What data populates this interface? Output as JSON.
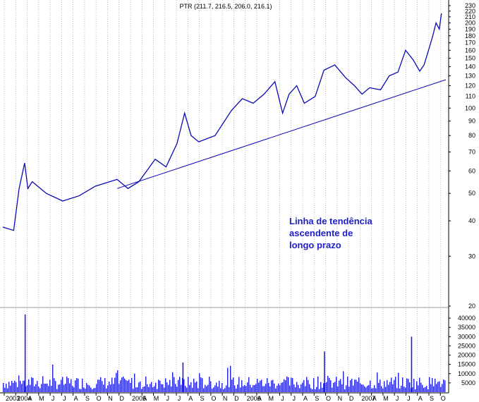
{
  "chart_data": {
    "type": "line",
    "title": "PTR (211.7, 216.5, 206.0, 216.1)",
    "colors": {
      "price": "#0a0ab4",
      "trendline": "#0a0ab4",
      "volume": "#2020e0",
      "grid": "#a0a0a0",
      "annotation": "#2020c8"
    },
    "annotation": [
      "Linha de tendência",
      "ascendente de",
      "longo prazo"
    ],
    "price_axis": {
      "scale": "log",
      "ylim": [
        20,
        230
      ],
      "tick_labels": [
        "230",
        "220",
        "210",
        "200",
        "190",
        "180",
        "170",
        "160",
        "150",
        "140",
        "130",
        "120",
        "110",
        "100",
        "90",
        "80",
        "70",
        "60",
        "50",
        "40",
        "30",
        "20"
      ]
    },
    "volume_axis": {
      "ylim": [
        0,
        45000
      ],
      "tick_labels": [
        "40000",
        "35000",
        "30000",
        "25000",
        "20000",
        "15000",
        "10000",
        "5000"
      ]
    },
    "x_tick_labels": [
      "2003",
      "2004",
      "A",
      "M",
      "J",
      "J",
      "A",
      "S",
      "O",
      "N",
      "D",
      "2005",
      "A",
      "M",
      "J",
      "J",
      "A",
      "S",
      "O",
      "N",
      "D",
      "2006",
      "A",
      "M",
      "J",
      "J",
      "A",
      "S",
      "O",
      "N",
      "D",
      "2007",
      "A",
      "M",
      "J",
      "J",
      "A",
      "S",
      "O"
    ],
    "price_series": {
      "name": "PTR",
      "x": [
        2003.85,
        2003.95,
        2004.0,
        2004.05,
        2004.08,
        2004.12,
        2004.25,
        2004.4,
        2004.55,
        2004.7,
        2004.9,
        2005.0,
        2005.1,
        2005.25,
        2005.35,
        2005.45,
        2005.52,
        2005.58,
        2005.65,
        2005.8,
        2005.95,
        2006.05,
        2006.15,
        2006.25,
        2006.35,
        2006.42,
        2006.48,
        2006.55,
        2006.62,
        2006.72,
        2006.8,
        2006.9,
        2007.0,
        2007.08,
        2007.15,
        2007.22,
        2007.32,
        2007.4,
        2007.48,
        2007.55,
        2007.62,
        2007.68,
        2007.72,
        2007.75,
        2007.8,
        2007.83,
        2007.86,
        2007.88
      ],
      "y": [
        38,
        37,
        52,
        64,
        52,
        55,
        50,
        47,
        49,
        53,
        56,
        52,
        55,
        66,
        62,
        75,
        96,
        80,
        76,
        80,
        98,
        108,
        104,
        112,
        124,
        96,
        112,
        120,
        104,
        110,
        136,
        142,
        128,
        120,
        112,
        118,
        116,
        130,
        134,
        160,
        148,
        135,
        142,
        155,
        180,
        200,
        190,
        216
      ]
    },
    "trendline": {
      "x": [
        2004.9,
        2007.92
      ],
      "y": [
        52,
        126
      ]
    },
    "volume_peaks": {
      "x": [
        2004.05,
        2005.5,
        2006.8,
        2007.6
      ],
      "y": [
        42000,
        16000,
        22000,
        30000
      ]
    }
  }
}
